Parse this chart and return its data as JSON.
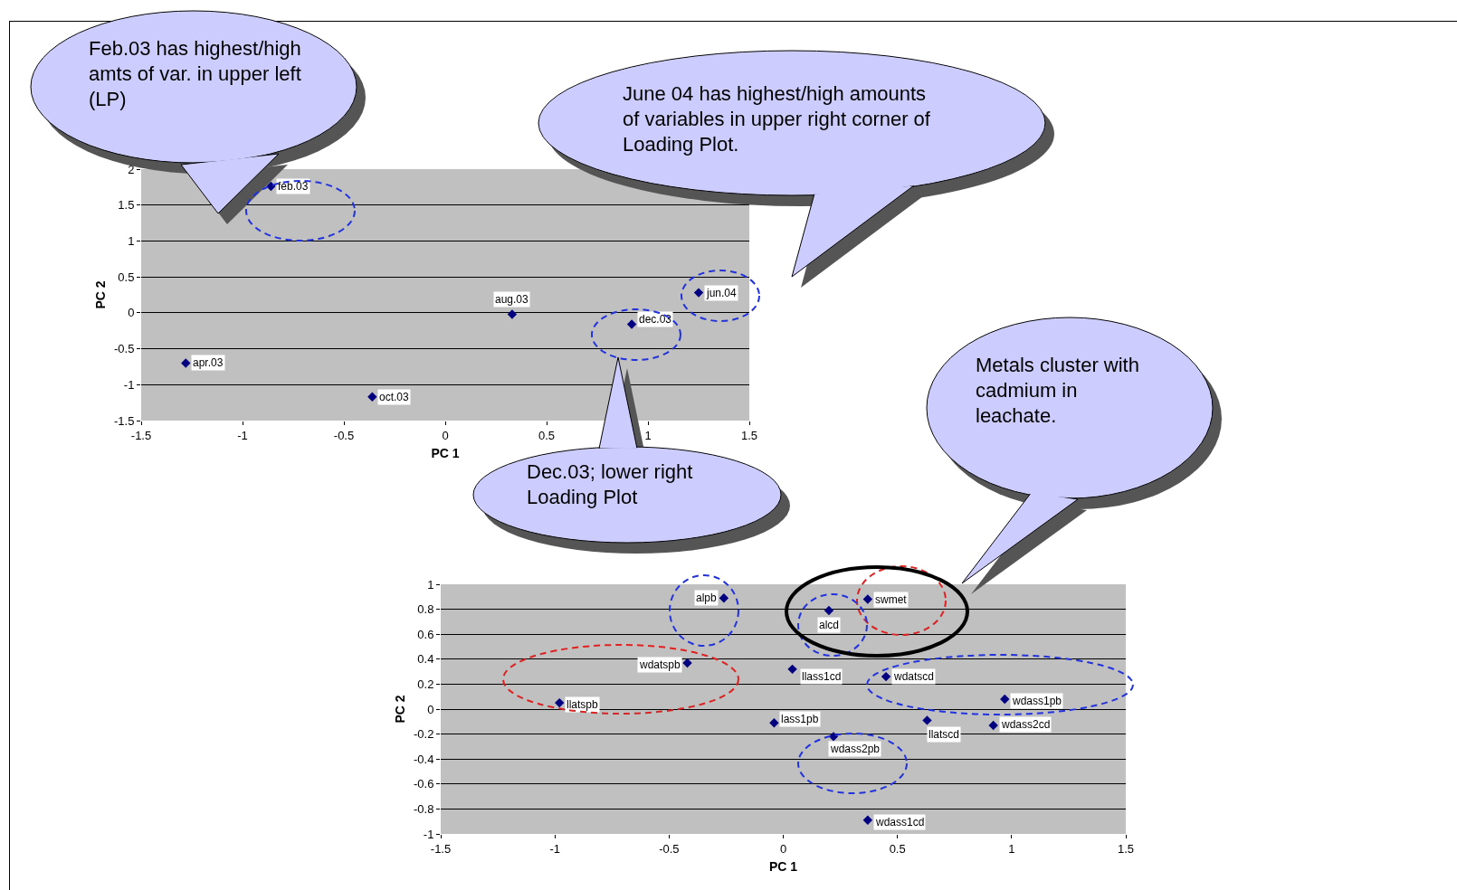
{
  "chart_data": [
    {
      "type": "scatter",
      "xlabel": "PC 1",
      "ylabel": "PC 2",
      "color": "#000080",
      "marker": "diamond",
      "grid": "y",
      "legend": false,
      "x": [
        -0.86,
        -1.28,
        -0.36,
        0.33,
        0.92,
        1.25
      ],
      "values": [
        1.76,
        -0.7,
        -1.17,
        -0.02,
        -0.16,
        0.28
      ],
      "xlim": [
        -1.5,
        1.5
      ],
      "xticks": [
        -1.5,
        -1,
        -0.5,
        0,
        0.5,
        1,
        1.5
      ],
      "ylim": [
        -1.5,
        2
      ],
      "yticks": [
        -1.5,
        -1,
        -0.5,
        0,
        0.5,
        1,
        1.5,
        2
      ],
      "annotations": [
        {
          "text": "feb.03",
          "x": -0.86,
          "y": 1.76
        },
        {
          "text": "apr.03",
          "x": -1.28,
          "y": -0.7
        },
        {
          "text": "oct.03",
          "x": -0.36,
          "y": -1.17
        },
        {
          "text": "aug.03",
          "x": 0.33,
          "y": -0.02
        },
        {
          "text": "dec.03",
          "x": 0.92,
          "y": -0.16
        },
        {
          "text": "jun.04",
          "x": 1.25,
          "y": 0.28
        },
        "Feb.03 has highest/high amts of var. in upper left (LP)",
        "June 04 has highest/high amounts of variables in upper right corner of Loading Plot.",
        "Dec.03; lower right Loading Plot"
      ]
    },
    {
      "type": "scatter",
      "xlabel": "PC 1",
      "ylabel": "PC 2",
      "color": "#000080",
      "marker": "diamond",
      "grid": "y",
      "legend": false,
      "x": [
        -0.26,
        0.37,
        0.2,
        -0.42,
        0.04,
        0.45,
        -0.98,
        0.97,
        -0.04,
        0.63,
        0.92,
        0.22,
        0.37
      ],
      "values": [
        0.89,
        0.88,
        0.79,
        0.37,
        0.32,
        0.26,
        0.05,
        0.08,
        -0.11,
        -0.09,
        -0.13,
        -0.22,
        -0.89
      ],
      "xlim": [
        -1.5,
        1.5
      ],
      "xticks": [
        -1.5,
        -1,
        -0.5,
        0,
        0.5,
        1,
        1.5
      ],
      "ylim": [
        -1,
        1
      ],
      "yticks": [
        -1,
        -0.8,
        -0.6,
        -0.4,
        -0.2,
        0,
        0.2,
        0.4,
        0.6,
        0.8,
        1
      ],
      "annotations": [
        {
          "text": "alpb",
          "x": -0.26,
          "y": 0.89
        },
        {
          "text": "swmet",
          "x": 0.37,
          "y": 0.88
        },
        {
          "text": "alcd",
          "x": 0.2,
          "y": 0.79
        },
        {
          "text": "wdatspb",
          "x": -0.42,
          "y": 0.37
        },
        {
          "text": "llass1cd",
          "x": 0.04,
          "y": 0.32
        },
        {
          "text": "wdatscd",
          "x": 0.45,
          "y": 0.26
        },
        {
          "text": "llatspb",
          "x": -0.98,
          "y": 0.05
        },
        {
          "text": "wdass1pb",
          "x": 0.97,
          "y": 0.08
        },
        {
          "text": "lass1pb",
          "x": -0.04,
          "y": -0.11
        },
        {
          "text": "llatscd",
          "x": 0.63,
          "y": -0.09
        },
        {
          "text": "wdass2cd",
          "x": 0.92,
          "y": -0.13
        },
        {
          "text": "wdass2pb",
          "x": 0.22,
          "y": -0.22
        },
        {
          "text": "wdass1cd",
          "x": 0.37,
          "y": -0.89
        },
        "Metals cluster with cadmium in leachate."
      ]
    }
  ]
}
